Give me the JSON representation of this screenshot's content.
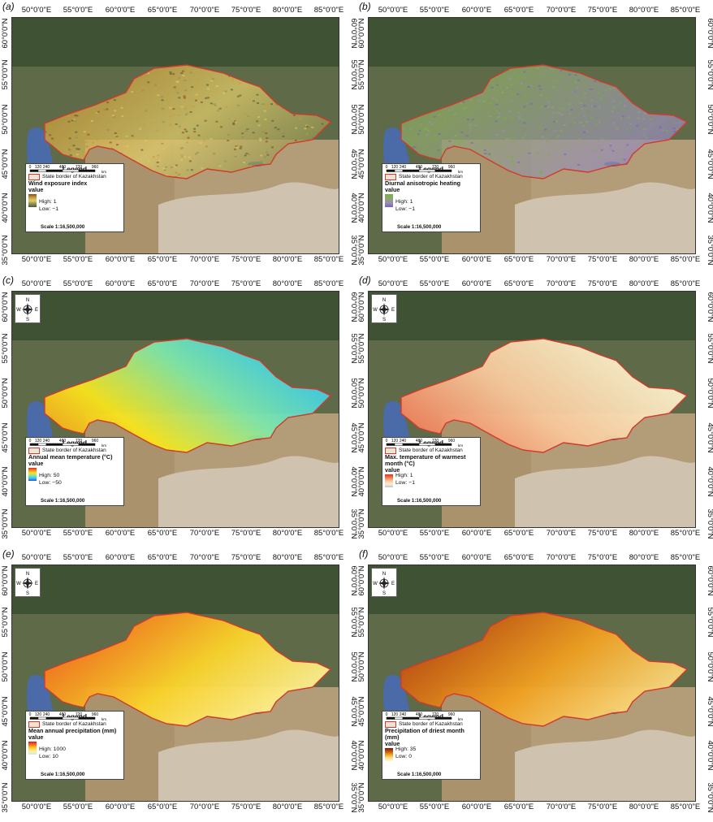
{
  "lon_labels": [
    "50°0'0\"E",
    "55°0'0\"E",
    "60°0'0\"E",
    "65°0'0\"E",
    "70°0'0\"E",
    "75°0'0\"E",
    "80°0'0\"E",
    "85°0'0\"E"
  ],
  "lat_labels": [
    "60°0'0\"N",
    "55°0'0\"N",
    "50°0'0\"N",
    "45°0'0\"N",
    "40°0'0\"N",
    "35°0'0\"N"
  ],
  "legend_common": {
    "title": "Legend",
    "border_label": "State border of Kazakhstan",
    "value_word": "value",
    "scale_text": "Scale 1:16,500,000",
    "scale_ticks": [
      "0",
      "120",
      "240",
      "480",
      "720",
      "960"
    ],
    "scale_unit": "km"
  },
  "compass": {
    "n": "N",
    "s": "S",
    "e": "E",
    "w": "W",
    "icon": "north-arrow-compass-icon"
  },
  "panels": [
    {
      "letter": "(a)",
      "variable": "Wind exposure index",
      "high": "High: 1",
      "low": "Low: −1",
      "ramp": [
        "#8b4a1f",
        "#c79a3a",
        "#e0cc6a",
        "#8c8f52",
        "#4b5a3a"
      ],
      "compass": false
    },
    {
      "letter": "(b)",
      "variable": "Diurnal anisotropic heating",
      "high": "High: 1",
      "low": "Low: −1",
      "ramp": [
        "#6fb53a",
        "#8fa86a",
        "#9a8fb4",
        "#7b5fc0"
      ],
      "compass": false
    },
    {
      "letter": "(c)",
      "variable": "Annual mean temperature (°C)",
      "high": "High: 50",
      "low": "Low: −50",
      "ramp": [
        "#e8261b",
        "#f59020",
        "#f8e41c",
        "#7fe6a8",
        "#35c8f0",
        "#2d4de8"
      ],
      "compass": true
    },
    {
      "letter": "(d)",
      "variable": "Max. temperature of warmest month (°C)",
      "high": "High: 1",
      "low": "Low: −1",
      "ramp": [
        "#d9331f",
        "#ef7a55",
        "#f7c79a",
        "#f9efc9",
        "#b9c6d8"
      ],
      "compass": true
    },
    {
      "letter": "(e)",
      "variable": "Mean annual precipitation (mm)",
      "high": "High: 1000",
      "low": "Low: 10",
      "ramp": [
        "#f20f1e",
        "#f6731c",
        "#fbd42a",
        "#fdf3a0",
        "#d8e3f0"
      ],
      "compass": true
    },
    {
      "letter": "(f)",
      "variable": "Precipitation of driest month (mm)",
      "high": "High: 35",
      "low": "Low: 0",
      "ramp": [
        "#7a1708",
        "#c05010",
        "#f0a020",
        "#fbe08a",
        "#fff6d8"
      ],
      "compass": true
    }
  ],
  "colors": {
    "border_line": "#d23a2a",
    "caspian": "#4a6aa8"
  }
}
